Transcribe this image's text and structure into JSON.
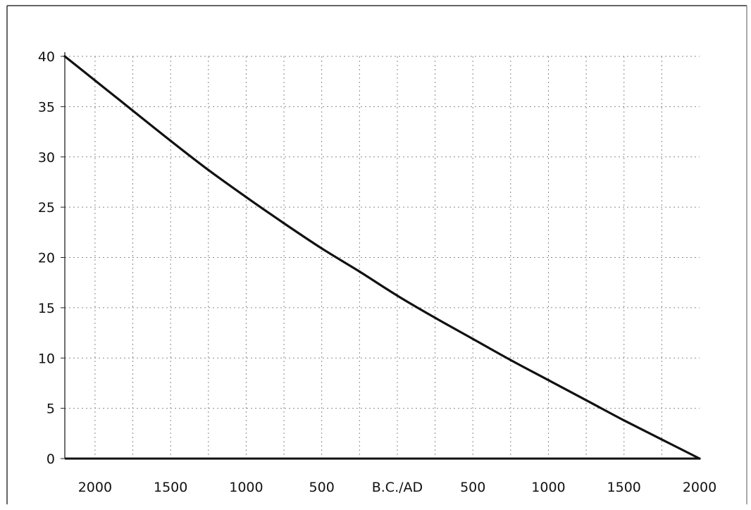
{
  "chart_data": {
    "type": "line",
    "title": "",
    "xlabel": "",
    "ylabel": "",
    "ylim": [
      0,
      40
    ],
    "xlim": [
      -2200,
      2000
    ],
    "grid": true,
    "y_ticks": [
      {
        "value": 0,
        "label": "0"
      },
      {
        "value": 5,
        "label": "5"
      },
      {
        "value": 10,
        "label": "10"
      },
      {
        "value": 15,
        "label": "15"
      },
      {
        "value": 20,
        "label": "20"
      },
      {
        "value": 25,
        "label": "25"
      },
      {
        "value": 30,
        "label": "30"
      },
      {
        "value": 35,
        "label": "35"
      },
      {
        "value": 40,
        "label": "40"
      }
    ],
    "x_ticks": [
      {
        "value": -2000,
        "label": "2000"
      },
      {
        "value": -1500,
        "label": "1500"
      },
      {
        "value": -1000,
        "label": "1000"
      },
      {
        "value": -500,
        "label": "500"
      },
      {
        "value": 0,
        "label": "B.C./AD"
      },
      {
        "value": 500,
        "label": "500"
      },
      {
        "value": 1000,
        "label": "1000"
      },
      {
        "value": 1500,
        "label": "1500"
      },
      {
        "value": 2000,
        "label": "2000"
      }
    ],
    "series": [
      {
        "color": "#111111",
        "points": [
          {
            "x": -2200,
            "y": 40.0
          },
          {
            "x": -2000,
            "y": 37.6
          },
          {
            "x": -1750,
            "y": 34.6
          },
          {
            "x": -1500,
            "y": 31.6
          },
          {
            "x": -1250,
            "y": 28.7
          },
          {
            "x": -1000,
            "y": 26.0
          },
          {
            "x": -750,
            "y": 23.4
          },
          {
            "x": -500,
            "y": 20.9
          },
          {
            "x": -250,
            "y": 18.6
          },
          {
            "x": 0,
            "y": 16.2
          },
          {
            "x": 250,
            "y": 14.0
          },
          {
            "x": 500,
            "y": 11.9
          },
          {
            "x": 750,
            "y": 9.8
          },
          {
            "x": 1000,
            "y": 7.8
          },
          {
            "x": 1250,
            "y": 5.8
          },
          {
            "x": 1500,
            "y": 3.8
          },
          {
            "x": 1750,
            "y": 1.9
          },
          {
            "x": 2000,
            "y": 0.0
          }
        ]
      }
    ]
  }
}
